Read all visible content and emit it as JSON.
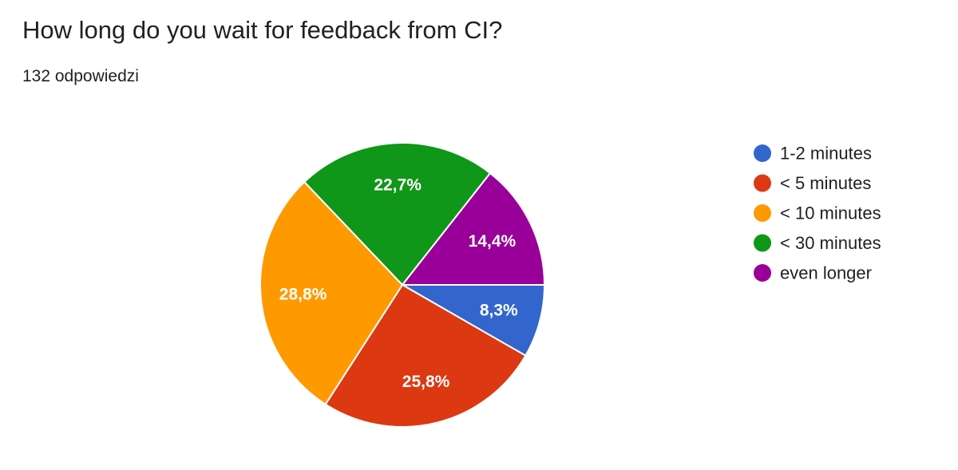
{
  "question": {
    "title": "How long do you wait for feedback from CI?",
    "responses": "132 odpowiedzi"
  },
  "chart_data": {
    "type": "pie",
    "categories": [
      "1-2 minutes",
      "< 5 minutes",
      "< 10 minutes",
      "< 30 minutes",
      "even longer"
    ],
    "values": [
      8.3,
      25.8,
      28.8,
      22.7,
      14.4
    ],
    "labels": [
      "8,3%",
      "25,8%",
      "28,8%",
      "22,7%",
      "14,4%"
    ],
    "colors": [
      "#3366cc",
      "#dc3912",
      "#ff9900",
      "#109618",
      "#990099"
    ],
    "legend_position": "right",
    "start_angle_deg": 90,
    "direction": "clockwise"
  }
}
